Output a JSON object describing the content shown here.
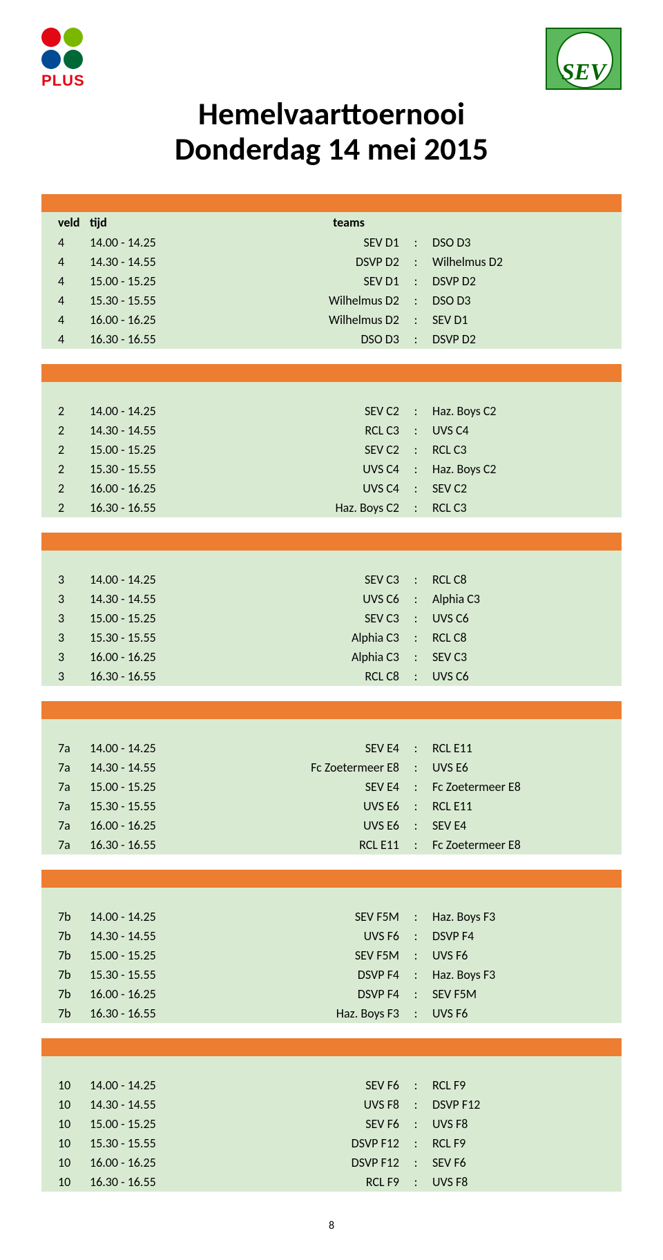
{
  "title_line1": "Hemelvaarttoernooi",
  "title_line2": "Donderdag 14 mei 2015",
  "plus_text": "PLUS",
  "sev_text": "SEV",
  "headers": {
    "veld": "veld",
    "tijd": "tijd",
    "teams": "teams"
  },
  "colors": {
    "bar": "#ed7d31",
    "row_bg": "#d9ead3",
    "plus_dots": [
      "#e30613",
      "#7ab800",
      "#004b93",
      "#006837"
    ]
  },
  "page_number": "8",
  "groups": [
    {
      "rows": [
        {
          "veld": "4",
          "tijd": "14.00 - 14.25",
          "home": "SEV D1",
          "away": "DSO D3"
        },
        {
          "veld": "4",
          "tijd": "14.30 - 14.55",
          "home": "DSVP D2",
          "away": "Wilhelmus D2"
        },
        {
          "veld": "4",
          "tijd": "15.00 - 15.25",
          "home": "SEV D1",
          "away": "DSVP D2"
        },
        {
          "veld": "4",
          "tijd": "15.30 - 15.55",
          "home": "Wilhelmus D2",
          "away": "DSO D3"
        },
        {
          "veld": "4",
          "tijd": "16.00 - 16.25",
          "home": "Wilhelmus D2",
          "away": "SEV D1"
        },
        {
          "veld": "4",
          "tijd": "16.30 - 16.55",
          "home": "DSO D3",
          "away": "DSVP D2"
        }
      ]
    },
    {
      "rows": [
        {
          "veld": "2",
          "tijd": "14.00 - 14.25",
          "home": "SEV C2",
          "away": "Haz. Boys C2"
        },
        {
          "veld": "2",
          "tijd": "14.30 - 14.55",
          "home": "RCL C3",
          "away": "UVS C4"
        },
        {
          "veld": "2",
          "tijd": "15.00 - 15.25",
          "home": "SEV C2",
          "away": "RCL C3"
        },
        {
          "veld": "2",
          "tijd": "15.30 - 15.55",
          "home": "UVS C4",
          "away": "Haz. Boys C2"
        },
        {
          "veld": "2",
          "tijd": "16.00 - 16.25",
          "home": "UVS C4",
          "away": "SEV C2"
        },
        {
          "veld": "2",
          "tijd": "16.30 - 16.55",
          "home": "Haz. Boys C2",
          "away": "RCL C3"
        }
      ]
    },
    {
      "rows": [
        {
          "veld": "3",
          "tijd": "14.00 - 14.25",
          "home": "SEV C3",
          "away": "RCL C8"
        },
        {
          "veld": "3",
          "tijd": "14.30 - 14.55",
          "home": "UVS C6",
          "away": "Alphia C3"
        },
        {
          "veld": "3",
          "tijd": "15.00 - 15.25",
          "home": "SEV C3",
          "away": "UVS C6"
        },
        {
          "veld": "3",
          "tijd": "15.30 - 15.55",
          "home": "Alphia C3",
          "away": "RCL C8"
        },
        {
          "veld": "3",
          "tijd": "16.00 - 16.25",
          "home": "Alphia C3",
          "away": "SEV C3"
        },
        {
          "veld": "3",
          "tijd": "16.30 - 16.55",
          "home": "RCL C8",
          "away": "UVS C6"
        }
      ]
    },
    {
      "rows": [
        {
          "veld": "7a",
          "tijd": "14.00 - 14.25",
          "home": "SEV E4",
          "away": "RCL E11"
        },
        {
          "veld": "7a",
          "tijd": "14.30 - 14.55",
          "home": "Fc Zoetermeer E8",
          "away": "UVS E6"
        },
        {
          "veld": "7a",
          "tijd": "15.00 - 15.25",
          "home": "SEV E4",
          "away": "Fc Zoetermeer E8"
        },
        {
          "veld": "7a",
          "tijd": "15.30 - 15.55",
          "home": "UVS E6",
          "away": "RCL E11"
        },
        {
          "veld": "7a",
          "tijd": "16.00 - 16.25",
          "home": "UVS E6",
          "away": "SEV E4"
        },
        {
          "veld": "7a",
          "tijd": "16.30 - 16.55",
          "home": "RCL E11",
          "away": "Fc Zoetermeer E8"
        }
      ]
    },
    {
      "rows": [
        {
          "veld": "7b",
          "tijd": "14.00 - 14.25",
          "home": "SEV F5M",
          "away": "Haz. Boys F3"
        },
        {
          "veld": "7b",
          "tijd": "14.30 - 14.55",
          "home": "UVS F6",
          "away": "DSVP F4"
        },
        {
          "veld": "7b",
          "tijd": "15.00 - 15.25",
          "home": "SEV F5M",
          "away": "UVS F6"
        },
        {
          "veld": "7b",
          "tijd": "15.30 - 15.55",
          "home": "DSVP F4",
          "away": "Haz. Boys F3"
        },
        {
          "veld": "7b",
          "tijd": "16.00 - 16.25",
          "home": "DSVP F4",
          "away": "SEV F5M"
        },
        {
          "veld": "7b",
          "tijd": "16.30 - 16.55",
          "home": "Haz. Boys F3",
          "away": "UVS F6"
        }
      ]
    },
    {
      "rows": [
        {
          "veld": "10",
          "tijd": "14.00 - 14.25",
          "home": "SEV F6",
          "away": "RCL F9"
        },
        {
          "veld": "10",
          "tijd": "14.30 - 14.55",
          "home": "UVS F8",
          "away": "DSVP F12"
        },
        {
          "veld": "10",
          "tijd": "15.00 - 15.25",
          "home": "SEV F6",
          "away": "UVS F8"
        },
        {
          "veld": "10",
          "tijd": "15.30 - 15.55",
          "home": "DSVP F12",
          "away": "RCL F9"
        },
        {
          "veld": "10",
          "tijd": "16.00 - 16.25",
          "home": "DSVP F12",
          "away": "SEV F6"
        },
        {
          "veld": "10",
          "tijd": "16.30 - 16.55",
          "home": "RCL F9",
          "away": "UVS F8"
        }
      ]
    }
  ]
}
